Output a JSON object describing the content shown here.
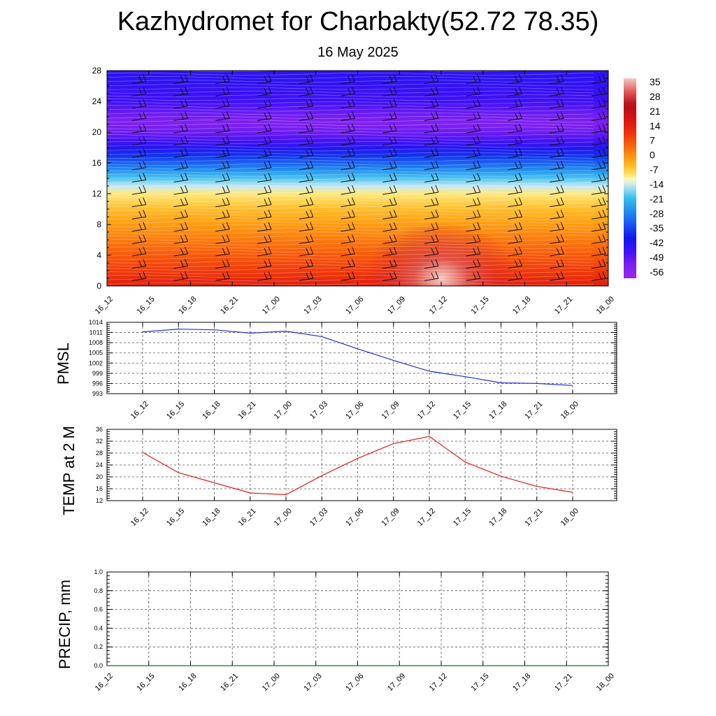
{
  "title": "Kazhydromet for Charbakty(52.72 78.35)",
  "subtitle": "16 May 2025",
  "colors": {
    "pmsl_line": "#1f2fd8",
    "temp_line": "#e0201a",
    "precip_line": "#1b6b1b"
  },
  "chart_data": [
    {
      "type": "heatmap",
      "id": "cross_section",
      "title": "",
      "xlabel": "",
      "ylabel": "",
      "x_ticks": [
        "16_12",
        "16_15",
        "16_18",
        "16_21",
        "17_00",
        "17_03",
        "17_06",
        "17_09",
        "17_12",
        "17_15",
        "17_18",
        "17_21",
        "18_00"
      ],
      "y_ticks": [
        0,
        4,
        8,
        12,
        16,
        20,
        24,
        28
      ],
      "ylim": [
        0,
        28
      ],
      "colorbar": {
        "labels": [
          35,
          28,
          21,
          14,
          7,
          0,
          -7,
          -14,
          -21,
          -28,
          -35,
          -42,
          -49,
          -56
        ],
        "range": [
          -63,
          42
        ]
      },
      "temperature_profile": [
        {
          "height": 0,
          "value": 18
        },
        {
          "height": 2,
          "value": 12
        },
        {
          "height": 4,
          "value": 8
        },
        {
          "height": 6,
          "value": 4
        },
        {
          "height": 8,
          "value": 0
        },
        {
          "height": 10,
          "value": -4
        },
        {
          "height": 12,
          "value": -9
        },
        {
          "height": 13,
          "value": -14
        },
        {
          "height": 14,
          "value": -20
        },
        {
          "height": 15,
          "value": -27
        },
        {
          "height": 16,
          "value": -33
        },
        {
          "height": 17,
          "value": -39
        },
        {
          "height": 18,
          "value": -45
        },
        {
          "height": 19,
          "value": -50
        },
        {
          "height": 20,
          "value": -54
        },
        {
          "height": 21,
          "value": -56
        },
        {
          "height": 22,
          "value": -55
        },
        {
          "height": 23,
          "value": -52
        },
        {
          "height": 24,
          "value": -49
        },
        {
          "height": 26,
          "value": -47
        },
        {
          "height": 28,
          "value": -46
        }
      ],
      "warm_spot": {
        "x": 8.0,
        "height": 1.0,
        "value": 34
      },
      "wind_barbs": "on",
      "grid": false
    },
    {
      "type": "line",
      "id": "pmsl",
      "ylabel": "PMSL",
      "categories": [
        "16_12",
        "16_15",
        "16_18",
        "16_21",
        "17_00",
        "17_03",
        "17_06",
        "17_09",
        "17_12",
        "17_15",
        "17_18",
        "17_21",
        "18_00"
      ],
      "y_ticks": [
        993,
        996,
        999,
        1002,
        1005,
        1008,
        1011,
        1014
      ],
      "ylim": [
        993,
        1014
      ],
      "series": [
        {
          "values": [
            1011.2,
            1012.0,
            1011.8,
            1010.8,
            1011.4,
            1009.8,
            1006.2,
            1002.8,
            999.6,
            998.0,
            996.2,
            996.0,
            995.4
          ]
        }
      ],
      "grid": true
    },
    {
      "type": "line",
      "id": "temp2m",
      "ylabel": "TEMP at 2 M",
      "categories": [
        "16_12",
        "16_15",
        "16_18",
        "16_21",
        "17_00",
        "17_03",
        "17_06",
        "17_09",
        "17_12",
        "17_15",
        "17_18",
        "17_21",
        "18_00"
      ],
      "y_ticks": [
        12,
        16,
        20,
        24,
        28,
        32,
        36
      ],
      "ylim": [
        12,
        36
      ],
      "series": [
        {
          "values": [
            28.2,
            21.4,
            18.0,
            14.6,
            14.0,
            20.4,
            26.2,
            31.2,
            33.6,
            25.0,
            20.2,
            16.8,
            14.8
          ]
        }
      ],
      "grid": true
    },
    {
      "type": "line",
      "id": "precip",
      "ylabel": "PRECIP, mm",
      "categories": [
        "16_12",
        "16_15",
        "16_18",
        "16_21",
        "17_00",
        "17_03",
        "17_06",
        "17_09",
        "17_12",
        "17_15",
        "17_18",
        "17_21",
        "18_00"
      ],
      "y_ticks": [
        "0.0",
        "0.2",
        "0.4",
        "0.6",
        "0.8",
        "1.0"
      ],
      "ylim": [
        0,
        1
      ],
      "series": [
        {
          "values": [
            0,
            0,
            0,
            0,
            0,
            0,
            0,
            0,
            0,
            0,
            0,
            0,
            0
          ]
        }
      ],
      "grid": true
    }
  ]
}
